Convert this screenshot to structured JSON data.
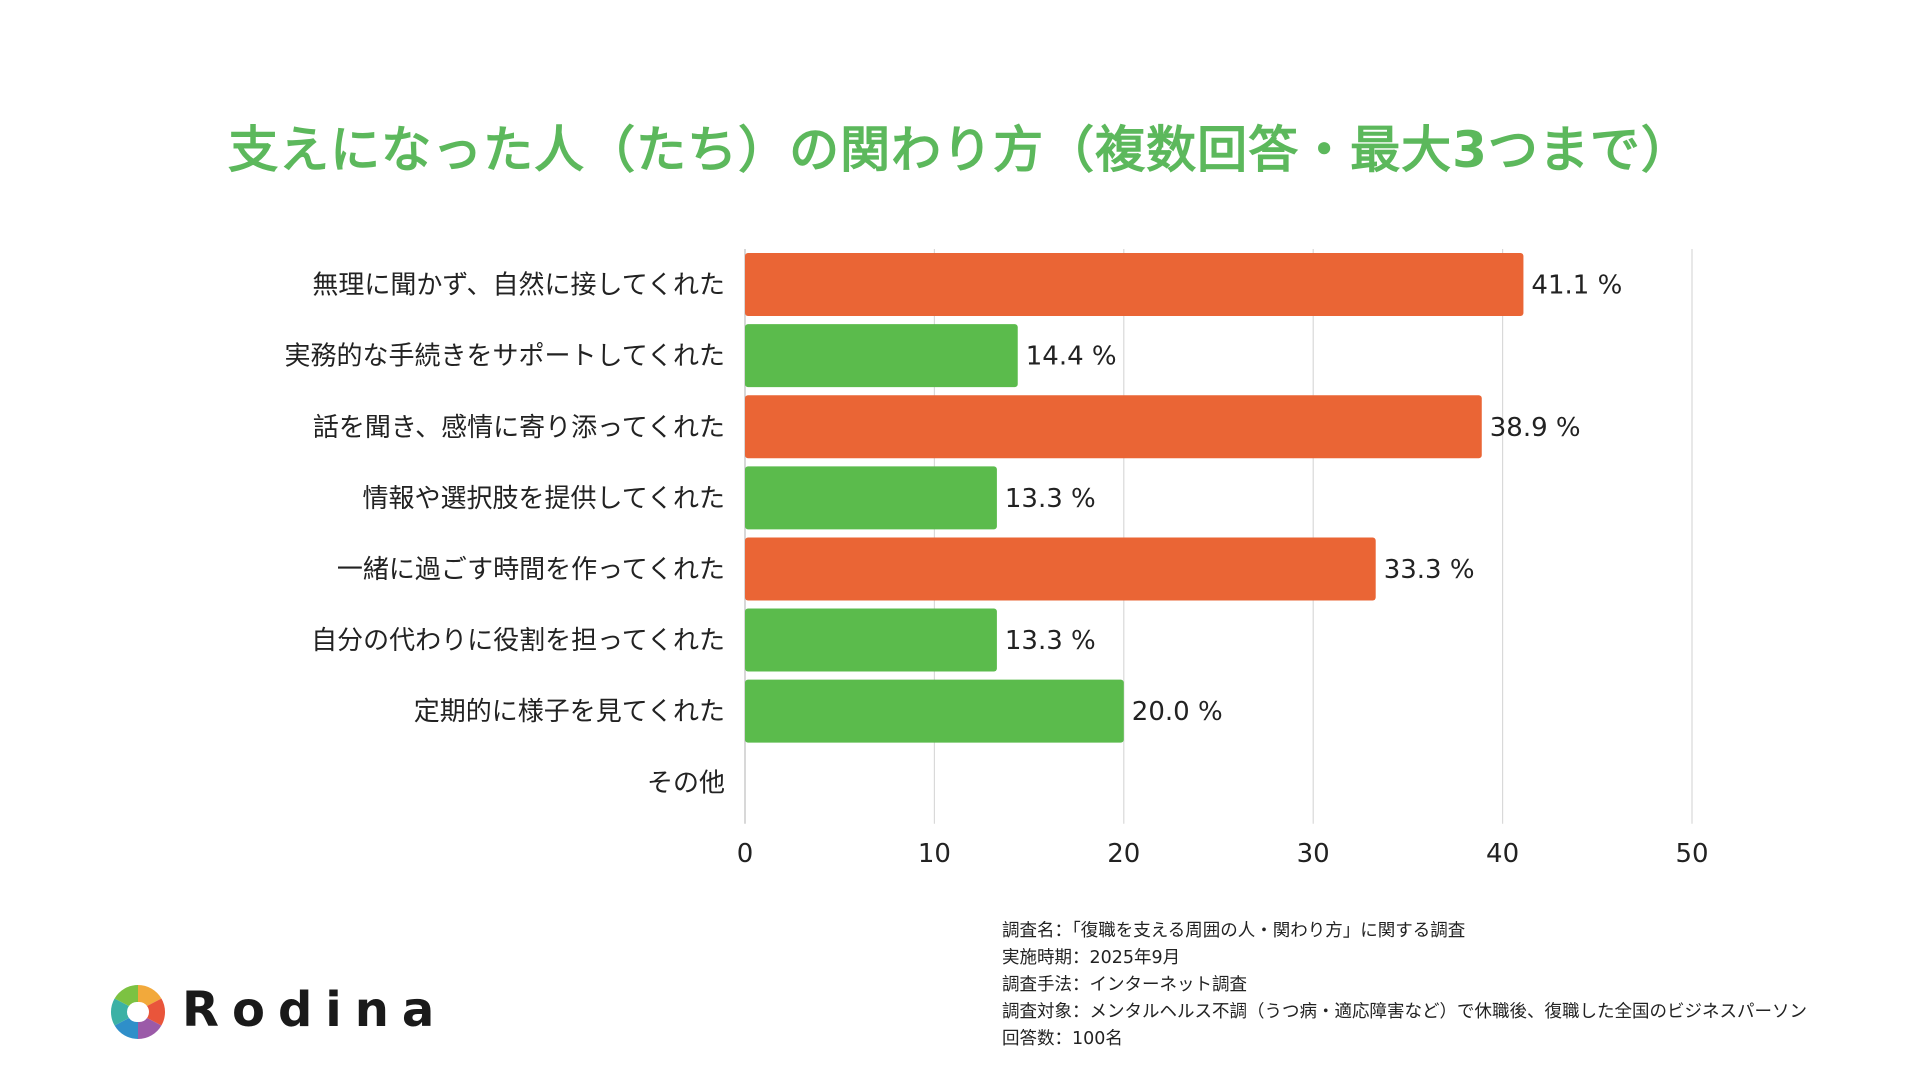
{
  "colors": {
    "title": "#5cb85c",
    "highlight": "#ea6535",
    "normal": "#5bbb4c",
    "grid": "#d9d9d9",
    "text": "#222222"
  },
  "chart_data": {
    "type": "bar",
    "orientation": "horizontal",
    "title": "支えになった人（たち）の関わり方（複数回答・最大3つまで）",
    "categories": [
      "無理に聞かず、自然に接してくれた",
      "実務的な手続きをサポートしてくれた",
      "話を聞き、感情に寄り添ってくれた",
      "情報や選択肢を提供してくれた",
      "一緒に過ごす時間を作ってくれた",
      "自分の代わりに役割を担ってくれた",
      "定期的に様子を見てくれた",
      "その他"
    ],
    "values": [
      41.1,
      14.4,
      38.9,
      13.3,
      33.3,
      13.3,
      20.0,
      0
    ],
    "value_labels": [
      "41.1 %",
      "14.4 %",
      "38.9 %",
      "13.3 %",
      "33.3 %",
      "13.3 %",
      "20.0 %",
      ""
    ],
    "highlighted": [
      true,
      false,
      true,
      false,
      true,
      false,
      false,
      false
    ],
    "xlim": [
      0,
      50
    ],
    "xticks": [
      0,
      10,
      20,
      30,
      40,
      50
    ],
    "xtick_labels": [
      "0",
      "10",
      "20",
      "30",
      "40",
      "50"
    ],
    "xlabel": "",
    "ylabel": "",
    "grid": true
  },
  "notes": [
    "調査名：「復職を支える周囲の人・関わり方」に関する調査",
    "実施時期：2025年9月",
    "調査手法：インターネット調査",
    "調査対象：メンタルヘルス不調（うつ病・適応障害など）で休職後、復職した全国のビジネスパーソン",
    "回答数：100名"
  ],
  "logo": {
    "text": "Rodina",
    "icon": "rodina-aperture-icon"
  }
}
